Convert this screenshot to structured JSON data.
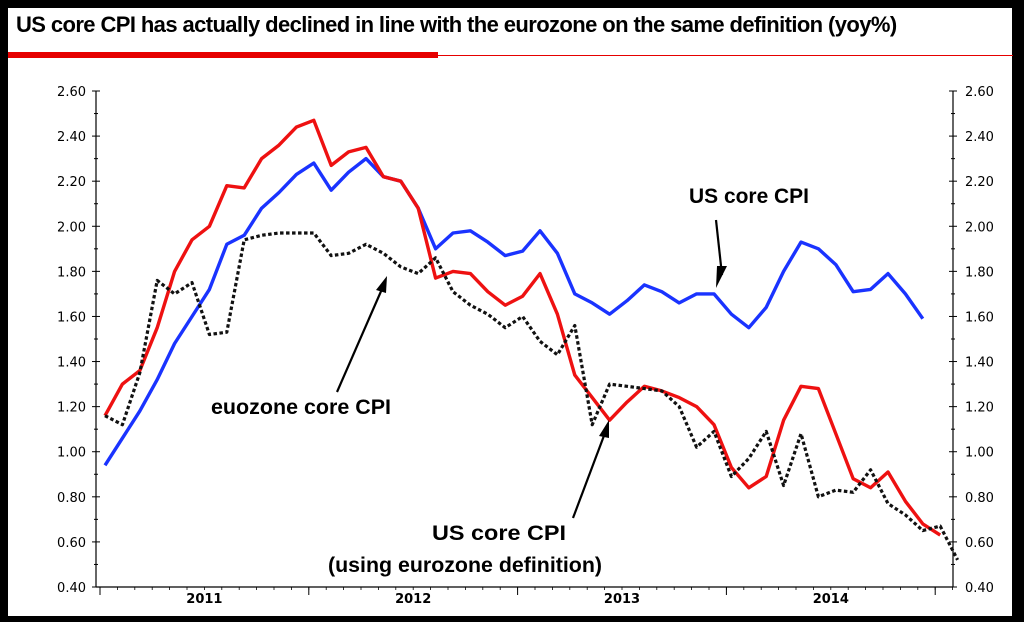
{
  "chart_data": {
    "type": "line",
    "title": "US core CPI has actually declined in line with the eurozone on the same definition (yoy%)",
    "ylim": [
      0.4,
      2.6
    ],
    "yticks": [
      "2.60",
      "2.40",
      "2.20",
      "2.00",
      "1.80",
      "1.60",
      "1.40",
      "1.20",
      "1.00",
      "0.80",
      "0.60",
      "0.40"
    ],
    "xticks": [
      "2011",
      "2012",
      "2013",
      "2014"
    ],
    "series": [
      {
        "name": "US core CPI",
        "color": "#1a33ff",
        "dash": "solid",
        "values": [
          0.94,
          1.06,
          1.18,
          1.32,
          1.48,
          1.6,
          1.72,
          1.92,
          1.96,
          2.08,
          2.15,
          2.23,
          2.28,
          2.16,
          2.24,
          2.3,
          2.22,
          2.2,
          2.08,
          1.9,
          1.97,
          1.98,
          1.93,
          1.87,
          1.89,
          1.98,
          1.88,
          1.7,
          1.66,
          1.61,
          1.67,
          1.74,
          1.71,
          1.66,
          1.7,
          1.7,
          1.61,
          1.55,
          1.64,
          1.8,
          1.93,
          1.9,
          1.83,
          1.71,
          1.72,
          1.79,
          1.7,
          1.59
        ]
      },
      {
        "name": "US core CPI (using eurozone definition)",
        "color": "#ee1111",
        "dash": "solid",
        "values": [
          1.16,
          1.3,
          1.36,
          1.55,
          1.8,
          1.94,
          2.0,
          2.18,
          2.17,
          2.3,
          2.36,
          2.44,
          2.47,
          2.27,
          2.33,
          2.35,
          2.22,
          2.2,
          2.08,
          1.77,
          1.8,
          1.79,
          1.71,
          1.65,
          1.69,
          1.79,
          1.61,
          1.34,
          1.24,
          1.14,
          1.22,
          1.29,
          1.27,
          1.24,
          1.2,
          1.12,
          0.93,
          0.84,
          0.89,
          1.14,
          1.29,
          1.28,
          1.08,
          0.88,
          0.84,
          0.91,
          0.78,
          0.68,
          0.63
        ]
      },
      {
        "name": "euozone core CPI",
        "color": "#111111",
        "dash": "dotted",
        "values": [
          1.16,
          1.12,
          1.35,
          1.76,
          1.7,
          1.75,
          1.52,
          1.53,
          1.94,
          1.96,
          1.97,
          1.97,
          1.97,
          1.87,
          1.88,
          1.92,
          1.88,
          1.82,
          1.79,
          1.86,
          1.71,
          1.65,
          1.61,
          1.55,
          1.6,
          1.49,
          1.43,
          1.56,
          1.12,
          1.3,
          1.29,
          1.28,
          1.27,
          1.2,
          1.02,
          1.09,
          0.89,
          0.97,
          1.09,
          0.85,
          1.08,
          0.8,
          0.83,
          0.82,
          0.92,
          0.77,
          0.72,
          0.65,
          0.67,
          0.52
        ]
      }
    ],
    "annotations": [
      "US core CPI",
      "euozone core CPI",
      "US core CPI",
      "(using eurozone definition)"
    ]
  }
}
